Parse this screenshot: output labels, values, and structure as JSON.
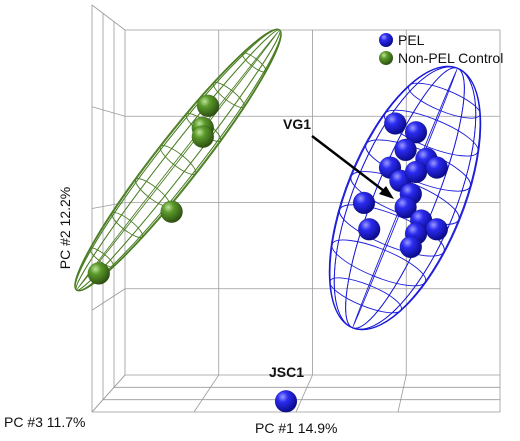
{
  "chart_data": {
    "type": "scatter",
    "projection": "3d",
    "title": "",
    "axes": {
      "x": {
        "label": "PC #1 14.9%"
      },
      "y": {
        "label": "PC #2 12.2%"
      },
      "z": {
        "label": "PC #3 11.7%"
      }
    },
    "grid": true,
    "legend": {
      "placement": "top-right",
      "entries": [
        {
          "name": "PEL",
          "color": "#1a1ad8"
        },
        {
          "name": "Non-PEL Control",
          "color": "#4a7d22"
        }
      ]
    },
    "series": [
      {
        "name": "PEL",
        "color": "#1a1ad8",
        "points": [
          {
            "x": 0.76,
            "y": 0.72
          },
          {
            "x": 0.8,
            "y": 0.7
          },
          {
            "x": 0.78,
            "y": 0.66
          },
          {
            "x": 0.82,
            "y": 0.64
          },
          {
            "x": 0.75,
            "y": 0.62
          },
          {
            "x": 0.77,
            "y": 0.59
          },
          {
            "x": 0.8,
            "y": 0.61
          },
          {
            "x": 0.84,
            "y": 0.62
          },
          {
            "x": 0.79,
            "y": 0.56
          },
          {
            "x": 0.7,
            "y": 0.54
          },
          {
            "x": 0.78,
            "y": 0.53
          },
          {
            "x": 0.81,
            "y": 0.5
          },
          {
            "x": 0.84,
            "y": 0.48
          },
          {
            "x": 0.8,
            "y": 0.47
          },
          {
            "x": 0.71,
            "y": 0.48
          },
          {
            "x": 0.79,
            "y": 0.44
          },
          {
            "x": 0.55,
            "y": 0.09
          }
        ],
        "mesh": true
      },
      {
        "name": "Non-PEL Control",
        "color": "#4a7d22",
        "points": [
          {
            "x": 0.4,
            "y": 0.76
          },
          {
            "x": 0.39,
            "y": 0.71
          },
          {
            "x": 0.39,
            "y": 0.69
          },
          {
            "x": 0.33,
            "y": 0.52
          },
          {
            "x": 0.19,
            "y": 0.38
          }
        ],
        "mesh": true
      }
    ],
    "annotations": [
      {
        "text": "VG1",
        "series": "PEL",
        "point_index": 15,
        "arrow": true
      },
      {
        "text": "JSC1",
        "series": "PEL",
        "point_index": 16,
        "arrow": false
      }
    ]
  }
}
